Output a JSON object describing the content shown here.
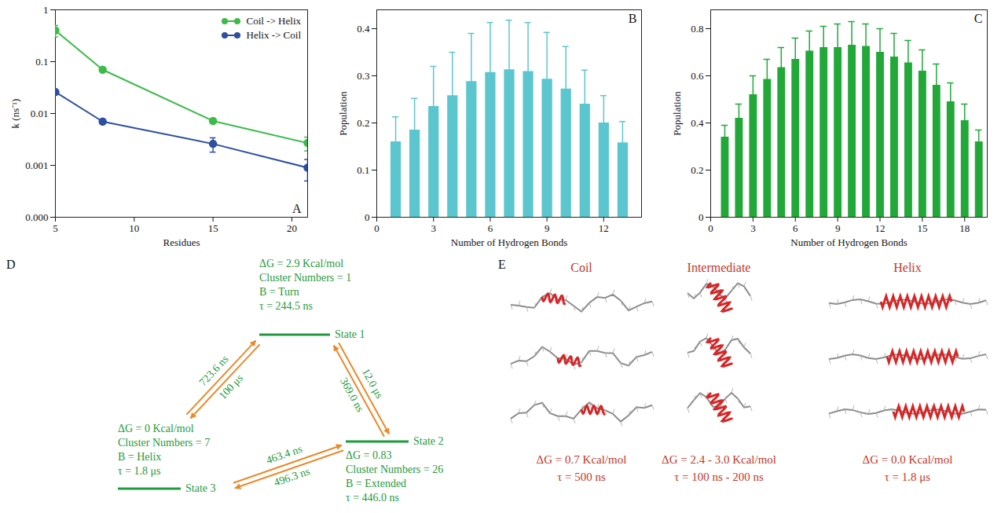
{
  "chart_data": [
    {
      "type": "line",
      "panel": "A",
      "log": "y",
      "marker": "circle",
      "legend": "upper right",
      "x": [
        5,
        8,
        15,
        21
      ],
      "xlabel": "Residues",
      "ylabel": "k (ns⁻¹)",
      "xlim": [
        5,
        21
      ],
      "xticks": [
        5,
        10,
        15,
        20
      ],
      "ylim": [
        0.0001,
        1
      ],
      "yticks": [
        1,
        0.1,
        0.01,
        0.001,
        {
          "value": 0.0001,
          "label": "0.000"
        }
      ],
      "series": [
        {
          "name": "Coil -> Helix",
          "color": "#3dbb4a",
          "values": [
            0.4,
            0.07,
            0.0072,
            0.0027
          ],
          "errors": [
            0.1,
            0.005,
            0.0006,
            0.0008
          ]
        },
        {
          "name": "Helix -> Coil",
          "color": "#2c4f9e",
          "values": [
            0.026,
            0.007,
            0.0026,
            0.0009
          ],
          "errors": [
            0.002,
            0.0005,
            0.0008,
            0.0004
          ]
        }
      ]
    },
    {
      "type": "bar",
      "panel": "B",
      "color": "#5cc6cf",
      "x": [
        1,
        2,
        3,
        4,
        5,
        6,
        7,
        8,
        9,
        10,
        11,
        12,
        13
      ],
      "values": [
        0.16,
        0.185,
        0.235,
        0.258,
        0.288,
        0.307,
        0.313,
        0.309,
        0.293,
        0.272,
        0.24,
        0.2,
        0.158
      ],
      "errors": [
        0.053,
        0.067,
        0.085,
        0.092,
        0.102,
        0.106,
        0.105,
        0.104,
        0.099,
        0.09,
        0.072,
        0.058,
        0.045
      ],
      "xlabel": "Number of Hydrogen Bonds",
      "ylabel": "Population",
      "xlim": [
        0,
        14
      ],
      "xticks": [
        0,
        3,
        6,
        9,
        12
      ],
      "ylim": [
        0,
        0.44
      ],
      "yticks": [
        0,
        0.1,
        0.2,
        0.3,
        0.4
      ]
    },
    {
      "type": "bar",
      "panel": "C",
      "color": "#22a838",
      "x": [
        1,
        2,
        3,
        4,
        5,
        6,
        7,
        8,
        9,
        10,
        11,
        12,
        13,
        14,
        15,
        16,
        17,
        18,
        19
      ],
      "values": [
        0.34,
        0.42,
        0.52,
        0.585,
        0.635,
        0.67,
        0.705,
        0.72,
        0.72,
        0.73,
        0.725,
        0.7,
        0.68,
        0.655,
        0.62,
        0.56,
        0.49,
        0.41,
        0.32
      ],
      "errors": [
        0.05,
        0.06,
        0.08,
        0.085,
        0.085,
        0.09,
        0.085,
        0.09,
        0.1,
        0.1,
        0.095,
        0.1,
        0.1,
        0.095,
        0.09,
        0.09,
        0.08,
        0.07,
        0.05
      ],
      "xlabel": "Number of Hydrogen Bonds",
      "ylabel": "Population",
      "xlim": [
        0,
        19.6
      ],
      "xticks": [
        0,
        3,
        6,
        9,
        12,
        15,
        18
      ],
      "ylim": [
        0,
        0.88
      ],
      "yticks": [
        0,
        0.2,
        0.4,
        0.6,
        0.8
      ]
    }
  ],
  "diagram_d": {
    "panel": "D",
    "states": [
      {
        "name": "State 1",
        "lines": [
          "ΔG = 2.9 Kcal/mol",
          "Cluster Numbers = 1",
          "B = Turn",
          "τ = 244.5 ns"
        ]
      },
      {
        "name": "State 2",
        "lines": [
          "ΔG = 0.83",
          "Cluster Numbers = 26",
          "B = Extended",
          "τ = 446.0 ns"
        ]
      },
      {
        "name": "State 3",
        "lines": [
          "ΔG = 0 Kcal/mol",
          "Cluster Numbers = 7",
          "B = Helix",
          "τ = 1.8 μs"
        ]
      }
    ],
    "transitions": [
      {
        "between": [
          "State 3",
          "State 1"
        ],
        "above": "723.6 ns",
        "below": "100 μs"
      },
      {
        "between": [
          "State 1",
          "State 2"
        ],
        "above": "12.0 μs",
        "below": "369.0 ns"
      },
      {
        "between": [
          "State 3",
          "State 2"
        ],
        "above": "463.4 ns",
        "below": "496.3 ns"
      }
    ]
  },
  "panel_e": {
    "panel": "E",
    "structures": [
      {
        "name": "Coil",
        "lines": [
          "ΔG = 0.7 Kcal/mol",
          "τ = 500 ns"
        ]
      },
      {
        "name": "Intermediate",
        "lines": [
          "ΔG = 2.4 - 3.0 Kcal/mol",
          "τ = 100 ns - 200 ns"
        ]
      },
      {
        "name": "Helix",
        "lines": [
          "ΔG = 0.0 Kcal/mol",
          "τ = 1.8 μs"
        ]
      }
    ]
  }
}
